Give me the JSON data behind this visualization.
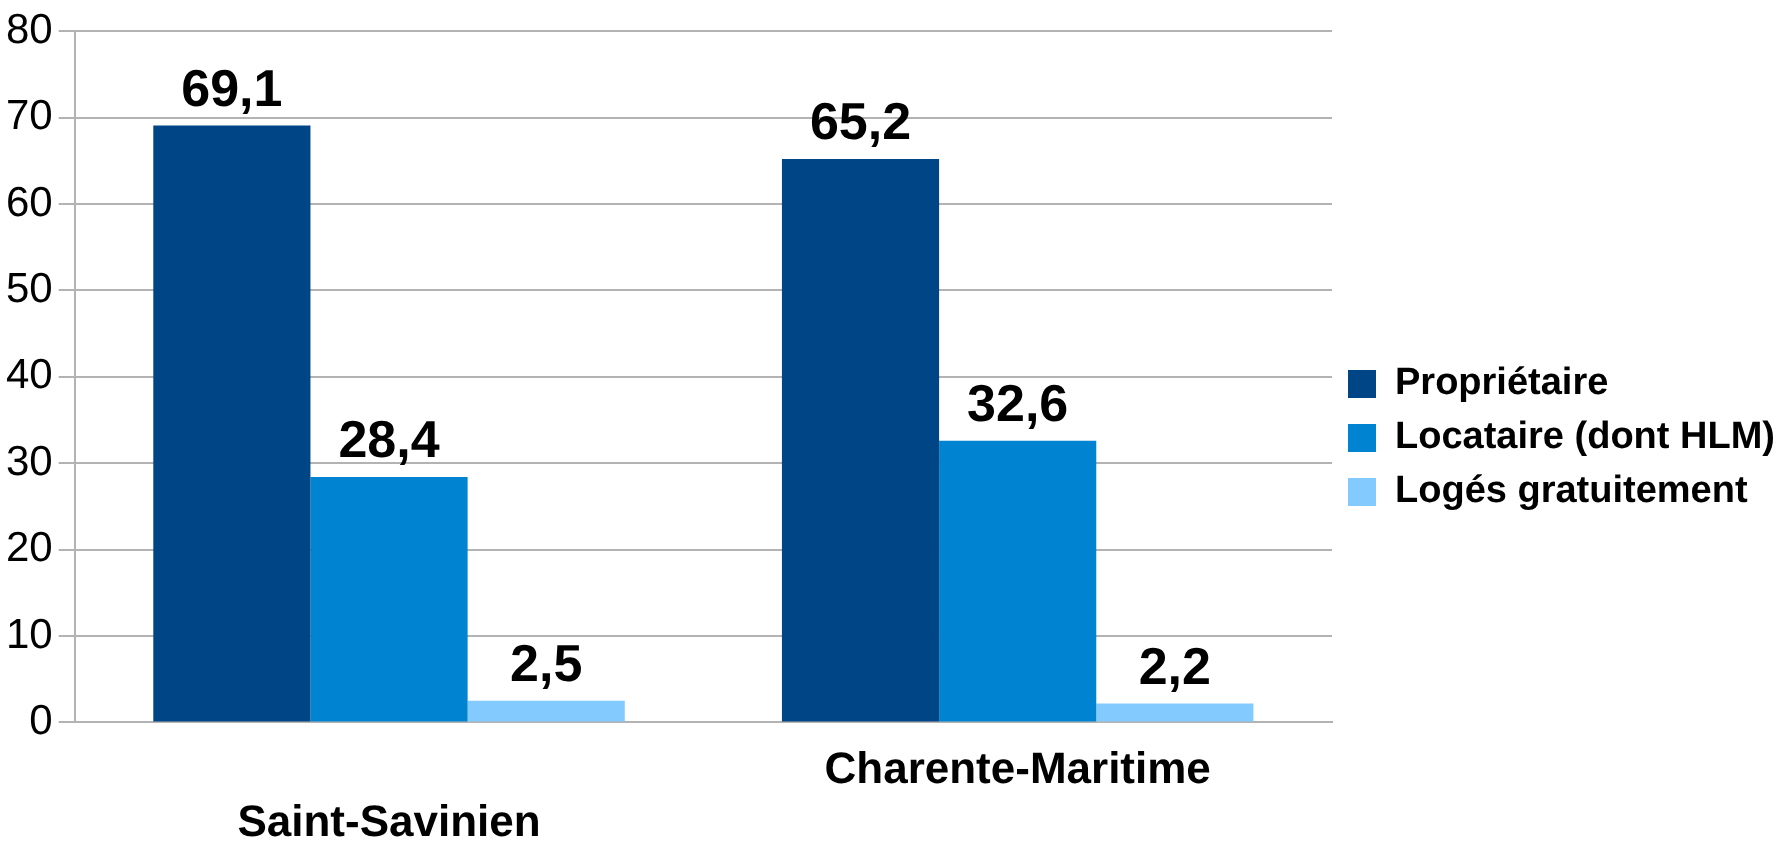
{
  "chart_data": {
    "type": "bar",
    "categories": [
      "Saint-Savinien",
      "Charente-Maritime"
    ],
    "series": [
      {
        "name": "Propriétaire",
        "color": "#004586",
        "values": [
          69.1,
          65.2
        ],
        "value_labels": [
          "69,1",
          "65,2"
        ]
      },
      {
        "name": "Locataire (dont HLM)",
        "color": "#0084d1",
        "values": [
          28.4,
          32.6
        ],
        "value_labels": [
          "28,4",
          "32,6"
        ]
      },
      {
        "name": "Logés gratuitement",
        "color": "#83caff",
        "values": [
          2.5,
          2.2
        ],
        "value_labels": [
          "2,5",
          "2,2"
        ]
      }
    ],
    "ylim": [
      0,
      80
    ],
    "yticks": [
      0,
      10,
      20,
      30,
      40,
      50,
      60,
      70,
      80
    ],
    "grid": "y",
    "legend": "right"
  }
}
